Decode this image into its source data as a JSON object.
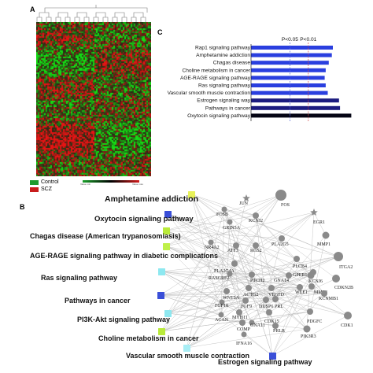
{
  "panels": {
    "a": "A",
    "b": "B",
    "c": "C"
  },
  "heatmap": {
    "legend": [
      {
        "label": "Control",
        "color": "#1f9a2e"
      },
      {
        "label": "SCZ",
        "color": "#c81c1c"
      }
    ],
    "scale": {
      "low": "Value min",
      "high": "Value max",
      "colors": [
        "#1aa02a",
        "#000000",
        "#d21a1a"
      ]
    }
  },
  "chart_data": {
    "type": "bar",
    "orientation": "horizontal",
    "categories": [
      "Rap1 signaling pathway",
      "Amphetamine addiction",
      "Chagas disease",
      "Choline metabolism in cancer",
      "AGE-RAGE signaling pathway",
      "Ras signaling pathway",
      "Vascular smooth muscle contraction",
      "Estrogen signaling way",
      "Pathways in cancer",
      "Oxytocin signaling pathway"
    ],
    "values": [
      0.8,
      0.79,
      0.76,
      0.73,
      0.72,
      0.73,
      0.75,
      0.86,
      0.87,
      0.98
    ],
    "colors": [
      "#2a3fdf",
      "#2a3fdf",
      "#2a3fdf",
      "#2a3fdf",
      "#2a3fdf",
      "#2a3fdf",
      "#2a3fdf",
      "#1c1c80",
      "#1c1c80",
      "#050514"
    ],
    "thresholds": [
      {
        "label": "P<0.05",
        "value": 0.38,
        "color": "#5a6bd8"
      },
      {
        "label": "P<0.01",
        "value": 0.56,
        "color": "#d24a4a"
      }
    ],
    "xlim": [
      0,
      1
    ]
  },
  "network": {
    "pathways": [
      {
        "label": "Amphetamine addiction",
        "color": "#e8f25a"
      },
      {
        "label": "Oxytocin signaling pathway",
        "color": "#3a4fd8"
      },
      {
        "label": "Chagas disease (American trypanosomiasis)",
        "color": "#b9ea3a"
      },
      {
        "label": "AGE-RAGE signaling pathway in diabetic complications",
        "color": "#bff04a"
      },
      {
        "label": "Ras signaling pathway",
        "color": "#8ee8f0"
      },
      {
        "label": "Pathways in cancer",
        "color": "#3a4fd8"
      },
      {
        "label": "PI3K-Akt signaling pathway",
        "color": "#8ee8f0"
      },
      {
        "label": "Choline metabolism in cancer",
        "color": "#b9ea3a"
      },
      {
        "label": "Vascular smooth muscle contraction",
        "color": "#a8eef5"
      },
      {
        "label": "Estrogen signaling pathway",
        "color": "#3a4fd8"
      }
    ],
    "genes": [
      "JUN",
      "FOS",
      "EGR1",
      "FOSB",
      "KCNJ2",
      "GRIN3A",
      "MMP1",
      "NR4A2",
      "ATF3",
      "RGS2",
      "PLA2G5",
      "ITGA2",
      "PLA2G4A",
      "PLCB4",
      "KCNJ6",
      "RASGRF2",
      "PTCH2",
      "GNA14",
      "GPER1",
      "CDKN2B",
      "WNT5A",
      "ACTG2",
      "VEGFD",
      "WEE1",
      "MMP8",
      "KCNMB1",
      "FGF18",
      "FGF9",
      "DUSP6",
      "PRL",
      "ACAN",
      "MYH11",
      "CDK15",
      "PDGFC",
      "CDK1",
      "COMP",
      "GNA11",
      "PRLR",
      "PIK3R3",
      "IFNA16"
    ]
  }
}
